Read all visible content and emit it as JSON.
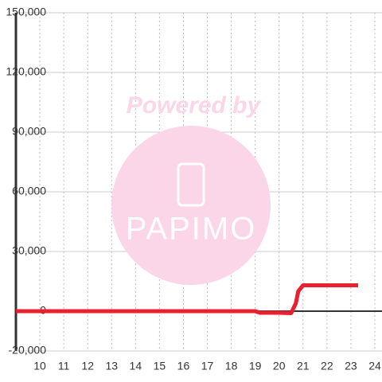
{
  "chart_data": {
    "type": "line",
    "watermark": [
      "Powered by",
      "PAPIMO"
    ],
    "x": [
      9,
      17.5,
      19,
      19.2,
      20,
      20.5,
      20.7,
      20.8,
      21,
      23.3
    ],
    "series": [
      {
        "color": "#e8202f",
        "values": [
          0,
          0,
          0,
          -800,
          -800,
          -1000,
          4000,
          10000,
          13000,
          13000
        ]
      }
    ],
    "xlim": [
      9,
      24.3
    ],
    "xticks": [
      10,
      11,
      12,
      13,
      14,
      15,
      16,
      17,
      18,
      19,
      20,
      21,
      22,
      23,
      24
    ],
    "ylim": [
      -20000,
      150000
    ],
    "yticks": [
      {
        "value": -20000,
        "label": "-20,000"
      },
      0,
      {
        "value": 30000,
        "label": "30,000"
      },
      {
        "value": 60000,
        "label": "60,000"
      },
      {
        "value": 90000,
        "label": "90,000"
      },
      {
        "value": 120000,
        "label": "120,000"
      },
      {
        "value": 150000,
        "label": "150,000"
      }
    ],
    "grid": true
  }
}
